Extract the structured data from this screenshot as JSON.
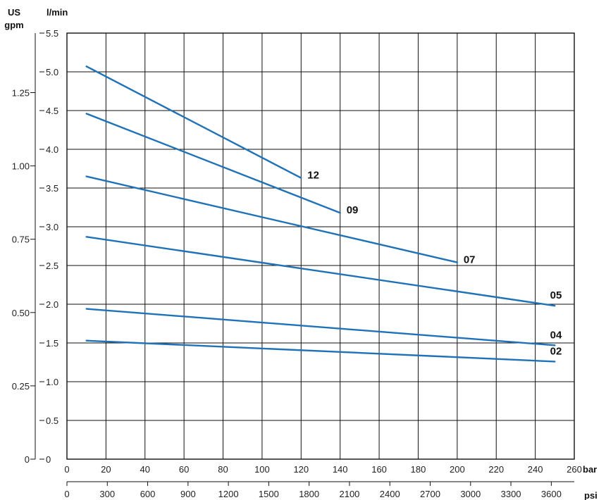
{
  "chart_data": {
    "type": "line",
    "units": {
      "left_outer": [
        "US",
        "gpm"
      ],
      "left_inner": "l/min",
      "bottom_top": "bar",
      "bottom_bottom": "psi"
    },
    "x_bar": {
      "min": 0,
      "max": 260,
      "ticks": [
        "0",
        "20",
        "40",
        "60",
        "80",
        "100",
        "120",
        "140",
        "160",
        "180",
        "200",
        "220",
        "240",
        "260"
      ]
    },
    "x_psi": {
      "ticks": [
        "0",
        "300",
        "600",
        "900",
        "1200",
        "1500",
        "1800",
        "2100",
        "2400",
        "2700",
        "3000",
        "3300",
        "3600"
      ],
      "values": [
        0,
        300,
        600,
        900,
        1200,
        1500,
        1800,
        2100,
        2400,
        2700,
        3000,
        3300,
        3600
      ]
    },
    "y_lmin": {
      "min": 0,
      "max": 5.5,
      "ticks": [
        "0",
        "0.5",
        "1.0",
        "1.5",
        "2.0",
        "2.5",
        "3.0",
        "3.5",
        "4.0",
        "4.5",
        "5.0",
        "5.5"
      ]
    },
    "y_gpm": {
      "ticks": [
        "0",
        "0.25",
        "0.50",
        "0.75",
        "1.00",
        "1.25"
      ],
      "values": [
        0,
        0.25,
        0.5,
        0.75,
        1.0,
        1.25
      ]
    },
    "grid": true,
    "series_color": "#1f72b8",
    "series": [
      {
        "name": "12",
        "points": [
          [
            10,
            5.07
          ],
          [
            120,
            3.63
          ]
        ]
      },
      {
        "name": "09",
        "points": [
          [
            10,
            4.46
          ],
          [
            140,
            3.18
          ]
        ]
      },
      {
        "name": "07",
        "points": [
          [
            10,
            3.65
          ],
          [
            200,
            2.54
          ]
        ]
      },
      {
        "name": "05",
        "points": [
          [
            10,
            2.87
          ],
          [
            250,
            1.98
          ]
        ]
      },
      {
        "name": "04",
        "points": [
          [
            10,
            1.94
          ],
          [
            250,
            1.47
          ]
        ]
      },
      {
        "name": "02",
        "points": [
          [
            10,
            1.53
          ],
          [
            250,
            1.26
          ]
        ]
      }
    ]
  }
}
